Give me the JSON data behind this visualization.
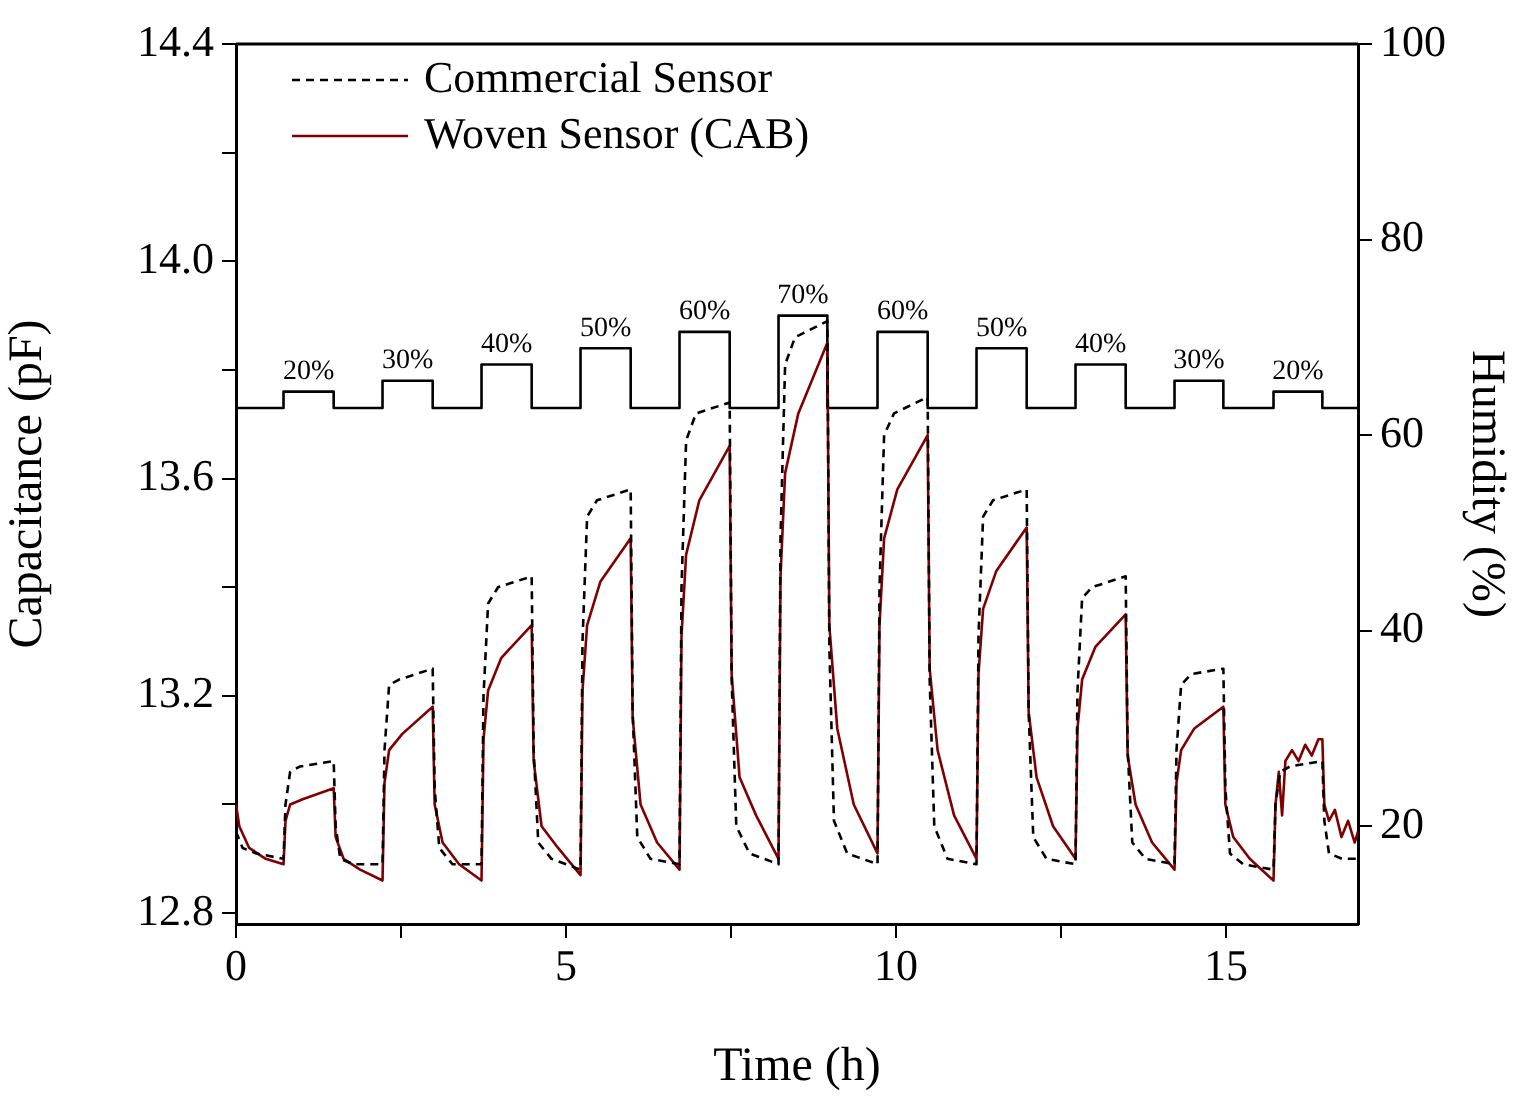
{
  "chart_data": {
    "type": "line",
    "xlabel": "Time (h)",
    "ylabel": "Capacitance (pF)",
    "y2label": "Humidity (%)",
    "xlim": [
      0,
      17
    ],
    "xticks": [
      0,
      {
        "value": 2.5,
        "label": null
      },
      5,
      {
        "value": 7.5,
        "label": null
      },
      10,
      {
        "value": 12.5,
        "label": null
      },
      15
    ],
    "ylim": [
      12.78,
      14.4
    ],
    "yticks": [
      12.8,
      {
        "value": 13.0,
        "label": null
      },
      13.2,
      {
        "value": 13.4,
        "label": null
      },
      13.6,
      {
        "value": 13.8,
        "label": null
      },
      {
        "value": 14,
        "label": "14.0"
      },
      {
        "value": 14.2,
        "label": null
      },
      14.4
    ],
    "y2lim": [
      10,
      100
    ],
    "y2ticks": [
      20,
      40,
      60,
      80,
      100
    ],
    "grid": false,
    "legend": "top left",
    "marker": "none",
    "series": [
      {
        "name": "Commercial Sensor",
        "color": "#000000",
        "line_style": "dashed",
        "x": [
          0,
          0.1,
          0.3,
          0.72,
          0.75,
          0.82,
          0.97,
          1.48,
          1.51,
          1.58,
          1.78,
          2.22,
          2.25,
          2.32,
          2.47,
          2.98,
          3.01,
          3.08,
          3.28,
          3.72,
          3.75,
          3.82,
          3.97,
          4.48,
          4.51,
          4.58,
          4.78,
          5.22,
          5.25,
          5.32,
          5.47,
          5.98,
          6.01,
          6.08,
          6.28,
          6.72,
          6.75,
          6.82,
          6.97,
          7.48,
          7.51,
          7.58,
          7.78,
          8.22,
          8.25,
          8.32,
          8.47,
          8.96,
          8.99,
          9.06,
          9.26,
          9.72,
          9.75,
          9.82,
          9.97,
          10.48,
          10.51,
          10.58,
          10.78,
          11.22,
          11.25,
          11.32,
          11.47,
          11.98,
          12.01,
          12.08,
          12.28,
          12.72,
          12.75,
          12.82,
          12.97,
          13.48,
          13.51,
          13.58,
          13.78,
          14.22,
          14.25,
          14.32,
          14.47,
          14.96,
          14.99,
          15.06,
          15.26,
          15.72,
          15.75,
          15.82,
          15.97,
          16.46,
          16.49,
          16.56,
          16.76,
          17
        ],
        "values": [
          12.95,
          12.92,
          12.91,
          12.9,
          13.0,
          13.06,
          13.07,
          13.08,
          12.96,
          12.9,
          12.89,
          12.89,
          13.1,
          13.22,
          13.23,
          13.25,
          13.03,
          12.92,
          12.89,
          12.89,
          13.2,
          13.37,
          13.4,
          13.42,
          13.1,
          12.93,
          12.9,
          12.88,
          13.3,
          13.53,
          13.56,
          13.58,
          13.17,
          12.94,
          12.9,
          12.89,
          13.4,
          13.67,
          13.72,
          13.74,
          13.23,
          12.96,
          12.91,
          12.89,
          13.49,
          13.81,
          13.86,
          13.89,
          13.29,
          12.97,
          12.91,
          12.89,
          13.4,
          13.68,
          13.72,
          13.75,
          13.23,
          12.96,
          12.9,
          12.89,
          13.31,
          13.53,
          13.56,
          13.58,
          13.17,
          12.94,
          12.9,
          12.89,
          13.21,
          13.38,
          13.4,
          13.42,
          13.1,
          12.93,
          12.9,
          12.89,
          13.1,
          13.22,
          13.24,
          13.25,
          13.03,
          12.91,
          12.89,
          12.88,
          13.0,
          13.06,
          13.07,
          13.08,
          12.97,
          12.91,
          12.9,
          12.9
        ]
      },
      {
        "name": "Woven Sensor (CAB)",
        "color": "#7f0000",
        "line_style": "solid",
        "x": [
          0,
          0.05,
          0.2,
          0.45,
          0.72,
          0.75,
          0.82,
          1.02,
          1.48,
          1.51,
          1.63,
          1.88,
          2.22,
          2.25,
          2.32,
          2.52,
          2.98,
          3.01,
          3.13,
          3.38,
          3.72,
          3.75,
          3.82,
          4.02,
          4.48,
          4.51,
          4.63,
          4.88,
          5.22,
          5.25,
          5.32,
          5.52,
          5.98,
          6.01,
          6.13,
          6.38,
          6.72,
          6.75,
          6.82,
          7.02,
          7.48,
          7.51,
          7.63,
          7.88,
          8.22,
          8.25,
          8.32,
          8.52,
          8.96,
          8.99,
          9.11,
          9.36,
          9.72,
          9.75,
          9.82,
          10.02,
          10.48,
          10.51,
          10.63,
          10.88,
          11.22,
          11.25,
          11.32,
          11.52,
          11.98,
          12.01,
          12.13,
          12.38,
          12.72,
          12.75,
          12.82,
          13.02,
          13.48,
          13.51,
          13.63,
          13.88,
          14.22,
          14.25,
          14.32,
          14.52,
          14.96,
          14.99,
          15.11,
          15.36,
          15.72,
          15.75,
          15.8,
          15.85,
          15.9,
          16.0,
          16.1,
          16.2,
          16.3,
          16.4,
          16.46,
          16.49,
          16.56,
          16.65,
          16.75,
          16.85,
          16.95,
          17
        ],
        "values": [
          13.0,
          12.96,
          12.92,
          12.9,
          12.89,
          12.97,
          13.0,
          13.01,
          13.03,
          12.94,
          12.9,
          12.88,
          12.86,
          13.04,
          13.1,
          13.13,
          13.18,
          13.0,
          12.93,
          12.89,
          12.86,
          13.12,
          13.21,
          13.27,
          13.33,
          13.08,
          12.96,
          12.92,
          12.87,
          13.21,
          13.33,
          13.41,
          13.49,
          13.16,
          13.0,
          12.93,
          12.88,
          13.31,
          13.46,
          13.56,
          13.66,
          13.24,
          13.05,
          12.98,
          12.9,
          13.42,
          13.61,
          13.72,
          13.85,
          13.33,
          13.14,
          13.0,
          12.91,
          13.33,
          13.49,
          13.58,
          13.68,
          13.25,
          13.1,
          12.98,
          12.9,
          13.24,
          13.36,
          13.43,
          13.51,
          13.17,
          13.05,
          12.96,
          12.9,
          13.14,
          13.23,
          13.29,
          13.35,
          13.09,
          13.0,
          12.93,
          12.88,
          13.04,
          13.1,
          13.14,
          13.18,
          13.0,
          12.94,
          12.9,
          12.86,
          13.0,
          13.06,
          12.98,
          13.08,
          13.1,
          13.08,
          13.11,
          13.09,
          13.12,
          13.12,
          13.0,
          12.97,
          12.99,
          12.94,
          12.97,
          12.93,
          12.95
        ]
      },
      {
        "color": "#000000",
        "line_style": "solid",
        "x": [
          0,
          0.72,
          0.72,
          1.48,
          1.48,
          2.22,
          2.22,
          2.98,
          2.98,
          3.72,
          3.72,
          4.48,
          4.48,
          5.22,
          5.22,
          5.98,
          5.98,
          6.72,
          6.72,
          7.48,
          7.48,
          8.22,
          8.22,
          8.96,
          8.96,
          9.72,
          9.72,
          10.48,
          10.48,
          11.22,
          11.22,
          11.98,
          11.98,
          12.72,
          12.72,
          13.48,
          13.48,
          14.22,
          14.22,
          14.96,
          14.96,
          15.72,
          15.72,
          16.46,
          16.46,
          17
        ],
        "values": [
          13.73,
          13.73,
          13.76,
          13.76,
          13.73,
          13.73,
          13.78,
          13.78,
          13.73,
          13.73,
          13.81,
          13.81,
          13.73,
          13.73,
          13.84,
          13.84,
          13.73,
          13.73,
          13.87,
          13.87,
          13.73,
          13.73,
          13.9,
          13.9,
          13.73,
          13.73,
          13.87,
          13.87,
          13.73,
          13.73,
          13.84,
          13.84,
          13.73,
          13.73,
          13.81,
          13.81,
          13.73,
          13.73,
          13.78,
          13.78,
          13.73,
          13.73,
          13.76,
          13.76,
          13.73,
          13.73
        ]
      }
    ],
    "annotations": [
      {
        "text": "20%",
        "x": 1.1,
        "y": 13.76
      },
      {
        "text": "30%",
        "x": 2.6,
        "y": 13.78
      },
      {
        "text": "40%",
        "x": 4.1,
        "y": 13.81
      },
      {
        "text": "50%",
        "x": 5.6,
        "y": 13.84
      },
      {
        "text": "60%",
        "x": 7.1,
        "y": 13.87
      },
      {
        "text": "70%",
        "x": 8.59,
        "y": 13.9
      },
      {
        "text": "60%",
        "x": 10.1,
        "y": 13.87
      },
      {
        "text": "50%",
        "x": 11.6,
        "y": 13.84
      },
      {
        "text": "40%",
        "x": 13.1,
        "y": 13.81
      },
      {
        "text": "30%",
        "x": 14.59,
        "y": 13.78
      },
      {
        "text": "20%",
        "x": 16.09,
        "y": 13.76
      }
    ]
  }
}
